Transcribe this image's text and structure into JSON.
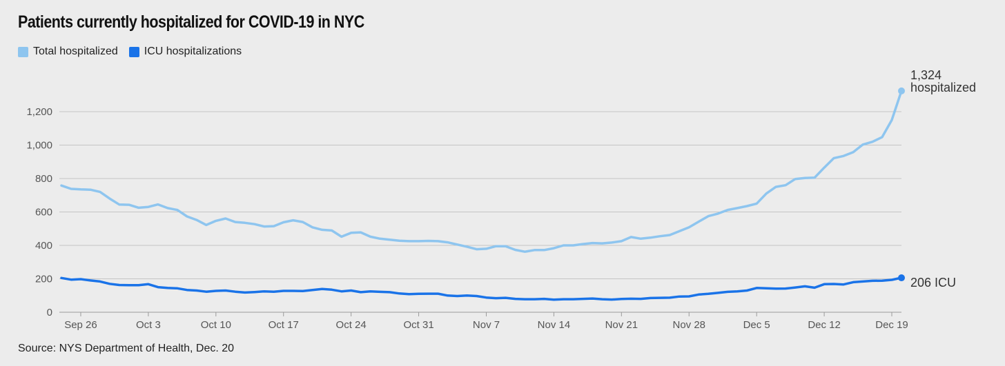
{
  "chart_data": {
    "type": "line",
    "title": "Patients currently hospitalized for COVID-19 in NYC",
    "source": "Source: NYS Department of Health, Dec. 20",
    "xlabel": "",
    "ylabel": "",
    "ylim": [
      0,
      1324
    ],
    "yticks": [
      0,
      200,
      400,
      600,
      800,
      1000,
      1200
    ],
    "ytick_labels": [
      "0",
      "200",
      "400",
      "600",
      "800",
      "1,000",
      "1,200"
    ],
    "xtick_labels": [
      "Sep 26",
      "Oct 3",
      "Oct 10",
      "Oct 17",
      "Oct 24",
      "Oct 31",
      "Nov 7",
      "Nov 14",
      "Nov 21",
      "Nov 28",
      "Dec 5",
      "Dec 12",
      "Dec 19"
    ],
    "xtick_day_index": [
      2,
      9,
      16,
      23,
      30,
      37,
      44,
      51,
      58,
      65,
      72,
      79,
      86
    ],
    "x_first_date": "Sep 24",
    "x_last_date": "Dec 20",
    "grid": true,
    "legend_position": "top-left",
    "series": [
      {
        "name": "Total hospitalized",
        "color": "#8ec5ef",
        "end_label_value": "1,324",
        "end_label_text": "hospitalized",
        "values": [
          758,
          738,
          735,
          733,
          720,
          680,
          644,
          643,
          625,
          630,
          645,
          623,
          612,
          573,
          552,
          522,
          547,
          561,
          540,
          535,
          527,
          513,
          515,
          538,
          550,
          540,
          508,
          493,
          489,
          452,
          475,
          478,
          452,
          440,
          434,
          428,
          425,
          425,
          427,
          425,
          418,
          405,
          392,
          377,
          380,
          395,
          395,
          373,
          362,
          372,
          372,
          383,
          400,
          400,
          408,
          414,
          412,
          417,
          425,
          450,
          440,
          446,
          455,
          462,
          485,
          508,
          542,
          575,
          590,
          612,
          623,
          635,
          650,
          710,
          750,
          760,
          797,
          803,
          805,
          865,
          922,
          935,
          958,
          1003,
          1020,
          1048,
          1150,
          1324
        ]
      },
      {
        "name": "ICU hospitalizations",
        "color": "#1a73e8",
        "end_label_value": "206",
        "end_label_text": "ICU",
        "values": [
          205,
          195,
          198,
          190,
          184,
          170,
          163,
          162,
          162,
          168,
          150,
          145,
          143,
          133,
          130,
          123,
          128,
          130,
          123,
          118,
          121,
          125,
          123,
          128,
          128,
          127,
          133,
          139,
          135,
          125,
          130,
          120,
          125,
          122,
          120,
          112,
          108,
          110,
          111,
          111,
          100,
          97,
          100,
          97,
          88,
          84,
          86,
          80,
          78,
          78,
          80,
          75,
          78,
          78,
          80,
          82,
          78,
          76,
          79,
          81,
          80,
          85,
          86,
          87,
          94,
          95,
          106,
          110,
          116,
          122,
          125,
          130,
          145,
          143,
          141,
          142,
          148,
          155,
          147,
          168,
          169,
          166,
          180,
          184,
          188,
          189,
          194,
          206
        ]
      }
    ]
  }
}
